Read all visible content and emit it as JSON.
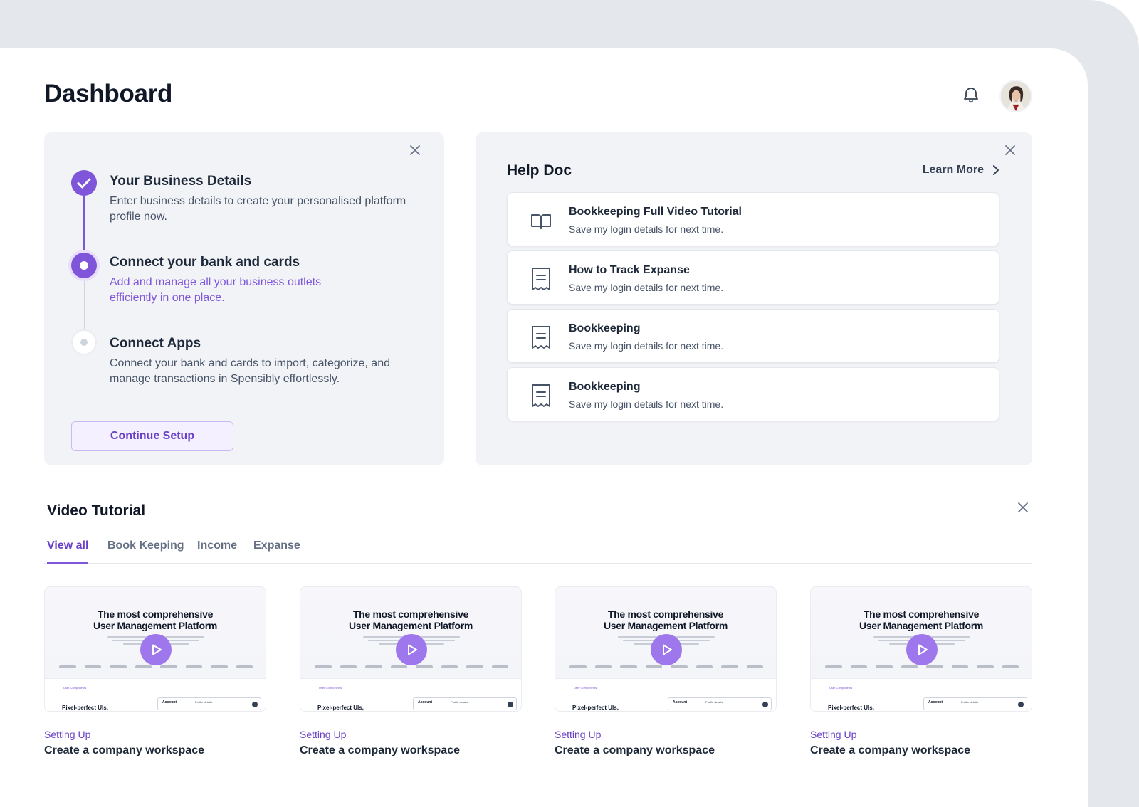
{
  "header": {
    "title": "Dashboard"
  },
  "icons": {
    "bell": "bell-icon",
    "avatar": "user-avatar",
    "close": "close-icon",
    "chevron": "chevron-right-icon",
    "book": "book-open-icon",
    "receipt": "receipt-icon",
    "play": "play-icon",
    "check": "check-icon"
  },
  "colors": {
    "accent": "#7f56d9",
    "accent_dark": "#6941c6",
    "card_bg": "#f2f3f7",
    "frame_bg": "#e4e7ec"
  },
  "setup": {
    "steps": [
      {
        "title": "Your Business Details",
        "description": "Enter business details to create your personalised platform profile now.",
        "status": "completed"
      },
      {
        "title": "Connect your bank and cards",
        "description": "Add and manage all your business outlets efficiently in one place.",
        "status": "active"
      },
      {
        "title": "Connect Apps",
        "description": "Connect your bank and cards to import, categorize, and manage transactions in Spensibly effortlessly.",
        "status": "pending"
      }
    ],
    "continue_label": "Continue Setup"
  },
  "help": {
    "title": "Help Doc",
    "learn_more": "Learn More",
    "items": [
      {
        "title": "Bookkeeping Full Video Tutorial",
        "subtitle": "Save my login details for next time.",
        "icon": "book-open-icon"
      },
      {
        "title": "How to Track Expanse",
        "subtitle": "Save my login details for next time.",
        "icon": "receipt-icon"
      },
      {
        "title": "Bookkeeping",
        "subtitle": "Save my login details for next time.",
        "icon": "receipt-icon"
      },
      {
        "title": "Bookkeeping",
        "subtitle": "Save my login details for next time.",
        "icon": "receipt-icon"
      }
    ]
  },
  "videos": {
    "title": "Video Tutorial",
    "tabs": [
      {
        "label": "View all",
        "active": true
      },
      {
        "label": "Book Keeping",
        "active": false
      },
      {
        "label": "Income",
        "active": false
      },
      {
        "label": "Expanse",
        "active": false
      }
    ],
    "thumbnail": {
      "heading_line1": "The most comprehensive",
      "heading_line2": "User Management Platform",
      "tag": "User Components",
      "bottom_text": "Pixel-perfect UIs,",
      "panel_title": "Account",
      "panel_text": "Profile details"
    },
    "items": [
      {
        "category": "Setting Up",
        "title": "Create a company workspace"
      },
      {
        "category": "Setting Up",
        "title": "Create a company workspace"
      },
      {
        "category": "Setting Up",
        "title": "Create a company workspace"
      },
      {
        "category": "Setting Up",
        "title": "Create a company workspace"
      }
    ]
  }
}
